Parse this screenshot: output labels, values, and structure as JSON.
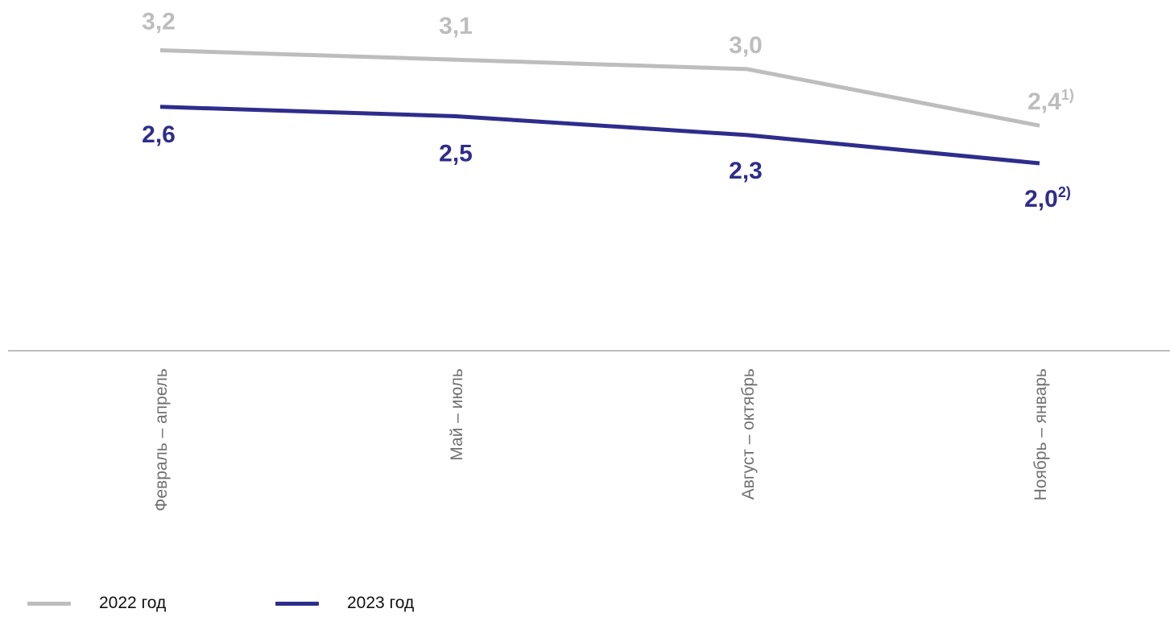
{
  "colors": {
    "series_2022": "#bdbdbd",
    "series_2023": "#2e2d8c",
    "axis": "#bdbdbd",
    "category_text": "#707070",
    "legend_text": "#111111"
  },
  "chart_data": {
    "type": "line",
    "categories": [
      "Февраль – апрель",
      "Май – июль",
      "Август – октябрь",
      "Ноябрь – январь"
    ],
    "series": [
      {
        "name": "2022 год",
        "values": [
          3.2,
          3.1,
          3.0,
          2.4
        ],
        "labels": [
          "3,2",
          "3,1",
          "3,0",
          "2,4"
        ],
        "label_notes": [
          "",
          "",
          "",
          "1)"
        ],
        "color": "#bdbdbd"
      },
      {
        "name": "2023 год",
        "values": [
          2.6,
          2.5,
          2.3,
          2.0
        ],
        "labels": [
          "2,6",
          "2,5",
          "2,3",
          "2,0"
        ],
        "label_notes": [
          "",
          "",
          "",
          "2)"
        ],
        "color": "#2e2d8c"
      }
    ],
    "title": "",
    "xlabel": "",
    "ylabel": "",
    "ylim": [
      0,
      3.3
    ],
    "grid": false,
    "legend": "bottom-left"
  }
}
